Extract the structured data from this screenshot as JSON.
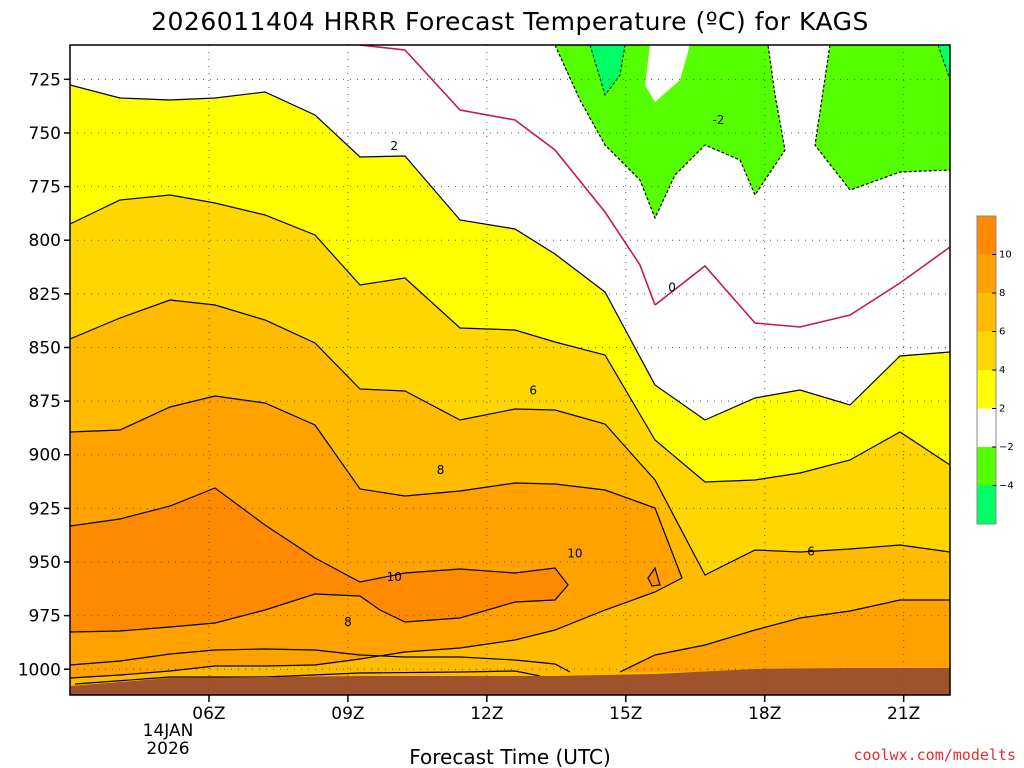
{
  "chart_data": {
    "type": "contour",
    "title": "2026011404 HRRR Forecast Temperature (ºC) for KAGS",
    "xlabel": "Forecast Time (UTC)",
    "ylabel": "",
    "date_label": [
      "14JAN",
      "2026"
    ],
    "x_ticks": [
      "06Z",
      "09Z",
      "12Z",
      "15Z",
      "18Z",
      "21Z"
    ],
    "x_tick_hours": [
      6,
      9,
      12,
      15,
      18,
      21
    ],
    "xlim": [
      3,
      22
    ],
    "y_ticks": [
      725,
      750,
      775,
      800,
      825,
      850,
      875,
      900,
      925,
      950,
      975,
      1000
    ],
    "ylim": [
      1012,
      709
    ],
    "colorbar": {
      "labels": [
        "10",
        "8",
        "6",
        "4",
        "2",
        "−2",
        "−4"
      ],
      "colors": [
        "#ff8a00",
        "#ffa200",
        "#ffbb00",
        "#ffd600",
        "#ffff00",
        "#ffffff",
        "#55ff00",
        "#00ff66"
      ]
    },
    "fill_colors": {
      "lt_m4": "#00ff66",
      "m4_m2": "#55ff00",
      "m2_2": "#ffffff",
      "2_4": "#ffff00",
      "4_6": "#ffd600",
      "6_8": "#ffbb00",
      "8_10": "#ffa200",
      "gt_10": "#ff8a00",
      "ground": "#a0522d"
    },
    "contour_labels": [
      {
        "text": "2",
        "t": 10.0,
        "p": 756
      },
      {
        "text": "-2",
        "t": 17.0,
        "p": 744
      },
      {
        "text": "0",
        "t": 16.0,
        "p": 822
      },
      {
        "text": "6",
        "t": 13.0,
        "p": 870
      },
      {
        "text": "8",
        "t": 11.0,
        "p": 907
      },
      {
        "text": "10",
        "t": 13.9,
        "p": 946
      },
      {
        "text": "10",
        "t": 10.0,
        "p": 957
      },
      {
        "text": "8",
        "t": 9.0,
        "p": 978
      },
      {
        "text": "6",
        "t": 19.0,
        "p": 945
      }
    ]
  },
  "watermark": "coolwx.com/modelts"
}
